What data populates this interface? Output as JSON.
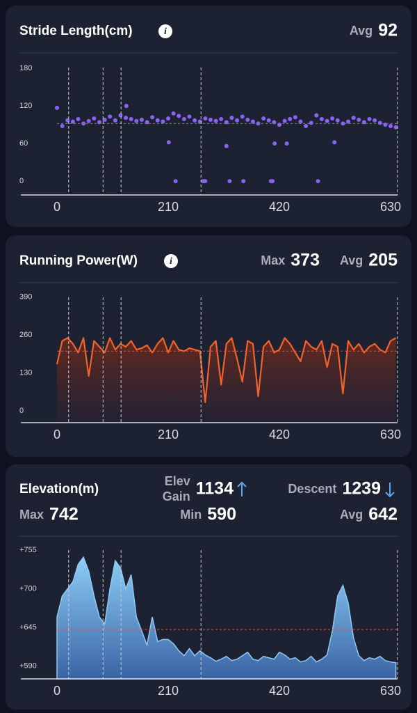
{
  "chart_data": [
    {
      "type": "scatter",
      "title": "Stride Length(cm)",
      "color": "#8b63f2",
      "stats": [
        {
          "label": "Avg",
          "value": 92
        }
      ],
      "x": [
        0,
        10,
        20,
        30,
        40,
        50,
        60,
        70,
        80,
        90,
        100,
        110,
        120,
        130,
        140,
        150,
        160,
        170,
        180,
        190,
        200,
        210,
        220,
        230,
        240,
        250,
        260,
        270,
        280,
        290,
        300,
        310,
        320,
        330,
        340,
        350,
        360,
        370,
        380,
        390,
        400,
        410,
        420,
        430,
        440,
        450,
        460,
        470,
        480,
        490,
        500,
        510,
        520,
        530,
        540,
        550,
        560,
        570,
        580,
        590,
        600,
        610,
        620,
        630,
        640,
        131,
        211,
        224,
        276,
        280,
        320,
        326,
        352,
        404,
        407,
        411,
        434,
        493,
        524
      ],
      "values": [
        117,
        88,
        97,
        95,
        99,
        92,
        96,
        100,
        94,
        98,
        103,
        97,
        105,
        101,
        99,
        96,
        98,
        94,
        102,
        97,
        95,
        100,
        108,
        104,
        99,
        103,
        97,
        95,
        100,
        98,
        96,
        99,
        94,
        101,
        97,
        103,
        98,
        95,
        92,
        100,
        97,
        94,
        90,
        96,
        99,
        102,
        95,
        88,
        93,
        105,
        99,
        96,
        100,
        97,
        92,
        95,
        101,
        98,
        94,
        99,
        97,
        93,
        90,
        88,
        86,
        120,
        62,
        0,
        0,
        0,
        56,
        0,
        0,
        0,
        0,
        60,
        60,
        0,
        62
      ],
      "xlim": [
        0,
        643
      ],
      "ylim": [
        -22,
        189
      ],
      "xticks": [
        0,
        210,
        420,
        630
      ],
      "yticks": [
        0,
        60,
        120,
        180
      ],
      "markers": [
        22,
        87,
        121,
        272,
        643
      ]
    },
    {
      "type": "line",
      "title": "Running Power(W)",
      "color": "#f2622b",
      "stats": [
        {
          "label": "Max",
          "value": 373
        },
        {
          "label": "Avg",
          "value": 205
        }
      ],
      "x": [
        0,
        10,
        20,
        30,
        40,
        50,
        60,
        70,
        80,
        90,
        100,
        110,
        120,
        130,
        140,
        150,
        160,
        170,
        180,
        190,
        200,
        210,
        220,
        230,
        240,
        250,
        260,
        270,
        280,
        290,
        300,
        310,
        320,
        330,
        340,
        350,
        360,
        370,
        380,
        390,
        400,
        410,
        420,
        430,
        440,
        450,
        460,
        470,
        480,
        490,
        500,
        510,
        520,
        530,
        540,
        550,
        560,
        570,
        580,
        590,
        600,
        610,
        620,
        630,
        640
      ],
      "values": [
        160,
        240,
        250,
        230,
        200,
        250,
        120,
        240,
        220,
        200,
        250,
        210,
        230,
        220,
        240,
        210,
        215,
        225,
        200,
        230,
        250,
        200,
        240,
        210,
        205,
        215,
        210,
        205,
        30,
        220,
        240,
        90,
        230,
        250,
        180,
        100,
        240,
        230,
        50,
        220,
        240,
        200,
        210,
        250,
        230,
        200,
        170,
        240,
        220,
        210,
        240,
        150,
        230,
        220,
        60,
        240,
        210,
        230,
        200,
        220,
        230,
        210,
        200,
        240,
        250
      ],
      "xlim": [
        0,
        643
      ],
      "ylim": [
        -40,
        406
      ],
      "xticks": [
        0,
        210,
        420,
        630
      ],
      "yticks": [
        0,
        130,
        260,
        390
      ],
      "markers": [
        22,
        87,
        121,
        272,
        643
      ]
    },
    {
      "type": "area",
      "title": "Elevation(m)",
      "color": "#8fcaf3",
      "stats": [
        {
          "label": "Elev Gain",
          "value": 1134
        },
        {
          "label": "Descent",
          "value": 1239
        },
        {
          "label": "Max",
          "value": 742
        },
        {
          "label": "Min",
          "value": 590
        },
        {
          "label": "Avg",
          "value": 642
        }
      ],
      "x": [
        0,
        10,
        20,
        30,
        40,
        50,
        60,
        70,
        80,
        90,
        100,
        110,
        120,
        130,
        140,
        150,
        160,
        170,
        180,
        190,
        200,
        210,
        220,
        230,
        240,
        250,
        260,
        270,
        280,
        290,
        300,
        310,
        320,
        330,
        340,
        350,
        360,
        370,
        380,
        390,
        400,
        410,
        420,
        430,
        440,
        450,
        460,
        470,
        480,
        490,
        500,
        510,
        520,
        530,
        540,
        550,
        560,
        570,
        580,
        590,
        600,
        610,
        620,
        630,
        640
      ],
      "values": [
        660,
        690,
        700,
        710,
        735,
        745,
        725,
        690,
        660,
        650,
        700,
        740,
        730,
        700,
        720,
        660,
        640,
        620,
        660,
        625,
        628,
        628,
        622,
        612,
        605,
        615,
        605,
        612,
        606,
        602,
        597,
        600,
        604,
        598,
        600,
        605,
        610,
        600,
        598,
        604,
        602,
        600,
        610,
        606,
        600,
        602,
        596,
        598,
        604,
        596,
        600,
        606,
        640,
        690,
        705,
        680,
        630,
        605,
        598,
        602,
        600,
        604,
        598,
        596,
        595
      ],
      "xlim": [
        0,
        643
      ],
      "ylim": [
        572,
        762
      ],
      "xticks": [
        0,
        210,
        420,
        630
      ],
      "yticks": [
        {
          "value": 590,
          "label": "+590"
        },
        {
          "value": 645,
          "label": "+645"
        },
        {
          "value": 700,
          "label": "+700"
        },
        {
          "value": 755,
          "label": "+755"
        }
      ],
      "markers": [
        22,
        87,
        121,
        272,
        643
      ]
    }
  ]
}
